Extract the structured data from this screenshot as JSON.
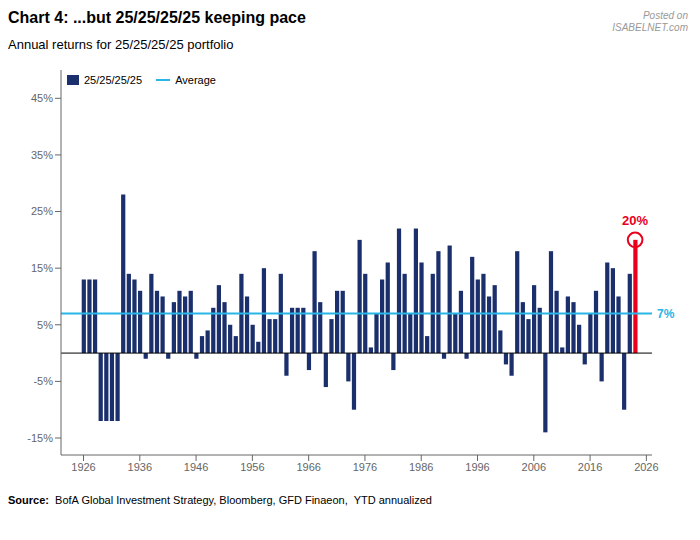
{
  "chart_data": {
    "type": "bar",
    "title": "Chart 4:  ...but 25/25/25/25 keeping pace",
    "subtitle": "Annual returns for 25/25/25/25 portfolio",
    "source_label": "Source:",
    "source": "  BofA Global Investment Strategy, Bloomberg, GFD Finaeon,  YTD annualized",
    "watermark": "Posted on\nISABELNET.com",
    "x": [
      1926,
      1927,
      1928,
      1929,
      1930,
      1931,
      1932,
      1933,
      1934,
      1935,
      1936,
      1937,
      1938,
      1939,
      1940,
      1941,
      1942,
      1943,
      1944,
      1945,
      1946,
      1947,
      1948,
      1949,
      1950,
      1951,
      1952,
      1953,
      1954,
      1955,
      1956,
      1957,
      1958,
      1959,
      1960,
      1961,
      1962,
      1963,
      1964,
      1965,
      1966,
      1967,
      1968,
      1969,
      1970,
      1971,
      1972,
      1973,
      1974,
      1975,
      1976,
      1977,
      1978,
      1979,
      1980,
      1981,
      1982,
      1983,
      1984,
      1985,
      1986,
      1987,
      1988,
      1989,
      1990,
      1991,
      1992,
      1993,
      1994,
      1995,
      1996,
      1997,
      1998,
      1999,
      2000,
      2001,
      2002,
      2003,
      2004,
      2005,
      2006,
      2007,
      2008,
      2009,
      2010,
      2011,
      2012,
      2013,
      2014,
      2015,
      2016,
      2017,
      2018,
      2019,
      2020,
      2021,
      2022,
      2023,
      2024
    ],
    "series": [
      {
        "name": "25/25/25/25",
        "color": "#1a2f6b",
        "values": [
          13,
          13,
          13,
          -12,
          -12,
          -12,
          -12,
          28,
          14,
          13,
          11,
          -1,
          14,
          11,
          10,
          -1,
          9,
          11,
          10,
          11,
          -1,
          3,
          4,
          8,
          12,
          9,
          5,
          3,
          14,
          10,
          5,
          2,
          15,
          6,
          6,
          14,
          -4,
          8,
          8,
          8,
          -3,
          18,
          9,
          -6,
          6,
          11,
          11,
          -5,
          -10,
          20,
          14,
          1,
          7,
          13,
          16,
          -3,
          22,
          14,
          7,
          22,
          16,
          3,
          14,
          18,
          -1,
          19,
          7,
          11,
          -1,
          17,
          13,
          14,
          10,
          12,
          4,
          -2,
          -4,
          18,
          9,
          6,
          12,
          8,
          -14,
          18,
          11,
          1,
          10,
          9,
          5,
          -2,
          7,
          11,
          -5,
          16,
          15,
          10,
          -10,
          14,
          20
        ]
      }
    ],
    "reference_lines": [
      {
        "name": "Average",
        "value": 7,
        "label": "7%",
        "color": "#29b5e8"
      }
    ],
    "highlight": {
      "x": 2024,
      "value": 20,
      "label": "20%",
      "color": "#e8001c"
    },
    "xlim": [
      1922,
      2027
    ],
    "xticks": [
      1926,
      1936,
      1946,
      1956,
      1966,
      1976,
      1986,
      1996,
      2006,
      2016,
      2026
    ],
    "ylim": [
      -18,
      50
    ],
    "yticks": [
      {
        "value": -15,
        "label": "-15%"
      },
      {
        "value": -5,
        "label": "-5%"
      },
      {
        "value": 5,
        "label": "5%"
      },
      {
        "value": 15,
        "label": "15%"
      },
      {
        "value": 25,
        "label": "25%"
      },
      {
        "value": 35,
        "label": "35%"
      },
      {
        "value": 45,
        "label": "45%"
      }
    ],
    "grid": false,
    "legend": "upper left"
  }
}
